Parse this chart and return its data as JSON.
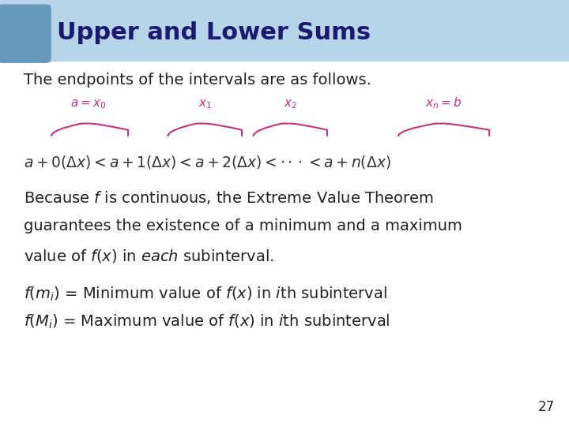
{
  "title": "Upper and Lower Sums",
  "title_bg": "#b8d4e8",
  "title_color": "#1a1a6e",
  "corner_bg": "#6699bb",
  "bg_color": "#ffffff",
  "text_color": "#222222",
  "pink": "#c0357a",
  "slide_num": "27",
  "fs_title": 22,
  "fs_body": 14,
  "fs_math": 13
}
